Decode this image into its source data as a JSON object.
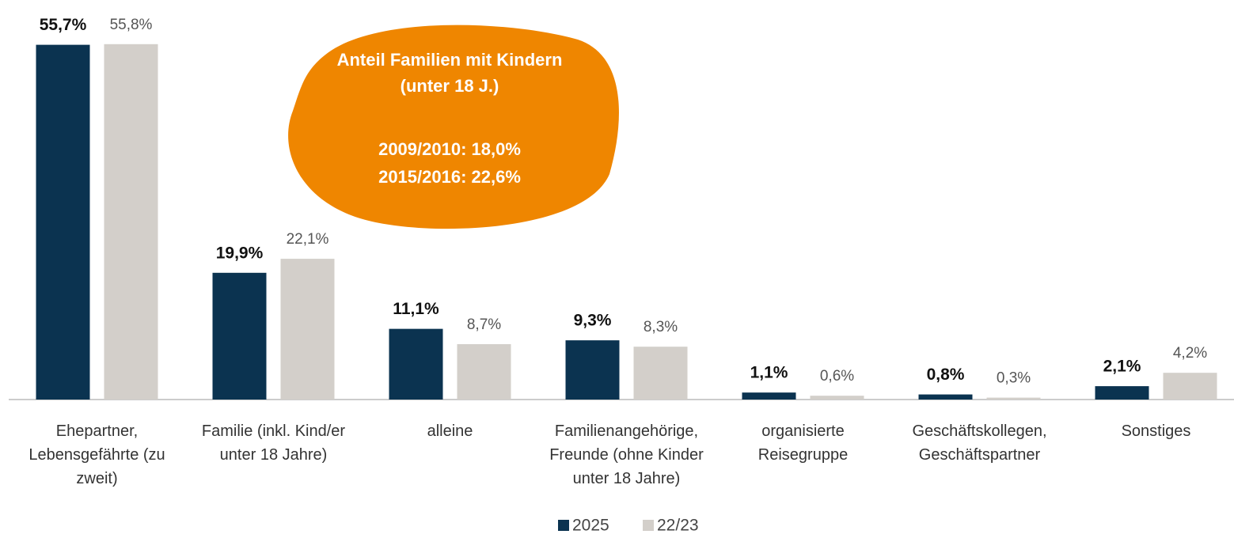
{
  "chart_data": {
    "type": "bar",
    "categories": [
      "Ehepartner, Lebensgefährte (zu zweit)",
      "Familie (inkl. Kind/er unter 18 Jahre)",
      "alleine",
      "Familienangehörige, Freunde (ohne Kinder unter 18 Jahre)",
      "organisierte Reisegruppe",
      "Geschäftskollegen, Geschäftspartner",
      "Sonstiges"
    ],
    "series": [
      {
        "name": "2025",
        "color": "#0b3350",
        "values": [
          55.7,
          19.9,
          11.1,
          9.3,
          1.1,
          0.8,
          2.1
        ],
        "value_labels": [
          "55,7%",
          "19,9%",
          "11,1%",
          "9,3%",
          "1,1%",
          "0,8%",
          "2,1%"
        ]
      },
      {
        "name": "22/23",
        "color": "#d3cfca",
        "values": [
          55.8,
          22.1,
          8.7,
          8.3,
          0.6,
          0.3,
          4.2
        ],
        "value_labels": [
          "55,8%",
          "22,1%",
          "8,7%",
          "8,3%",
          "0,6%",
          "0,3%",
          "4,2%"
        ]
      }
    ],
    "ylim": [
      0,
      60
    ],
    "annotation": {
      "lines": [
        "Anteil Familien mit Kindern",
        "(unter 18 J.)",
        "2009/2010: 18,0%",
        "2015/2016: 22,6%"
      ],
      "color": "#ef8600"
    },
    "legend": "bottom"
  }
}
